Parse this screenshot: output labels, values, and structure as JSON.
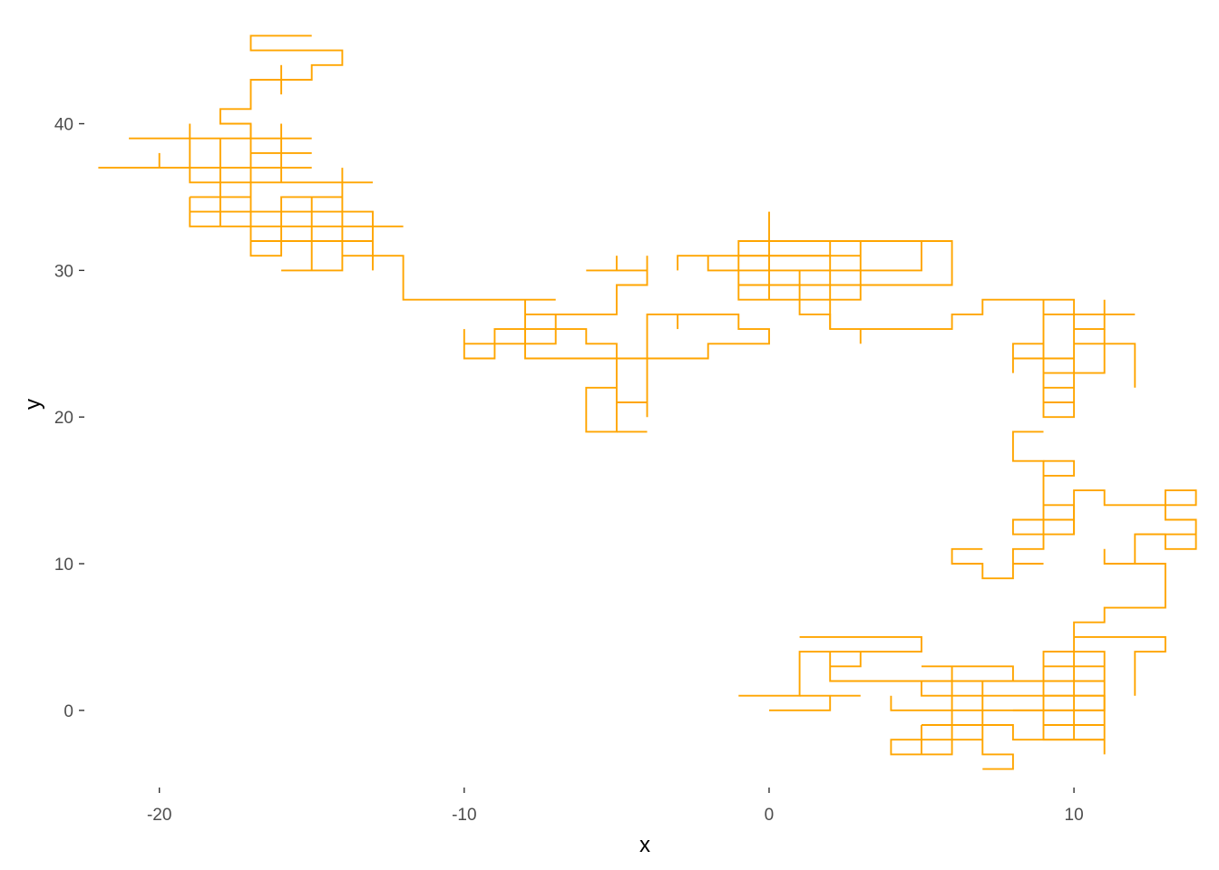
{
  "chart_data": {
    "type": "line",
    "title": "",
    "xlabel": "x",
    "ylabel": "y",
    "xlim": [
      -22.4,
      14.4
    ],
    "ylim": [
      -5.2,
      47.2
    ],
    "xticks": [
      -20,
      -10,
      0,
      10
    ],
    "yticks": [
      0,
      10,
      20,
      30,
      40
    ],
    "grid": false,
    "legend": "none",
    "series": [
      {
        "color": "#FFA500",
        "segments": [
          [
            [
              -15,
              46
            ],
            [
              -17,
              46
            ],
            [
              -17,
              45
            ],
            [
              -14,
              45
            ],
            [
              -14,
              44
            ],
            [
              -15,
              44
            ],
            [
              -15,
              43
            ],
            [
              -17,
              43
            ],
            [
              -17,
              42
            ],
            [
              -17,
              41
            ],
            [
              -18,
              41
            ],
            [
              -18,
              40
            ],
            [
              -17,
              40
            ],
            [
              -17,
              39
            ],
            [
              -19,
              39
            ],
            [
              -21,
              39
            ]
          ],
          [
            [
              -16,
              44
            ],
            [
              -16,
              42
            ]
          ],
          [
            [
              -22,
              37
            ],
            [
              -15,
              37
            ]
          ],
          [
            [
              -20,
              38
            ],
            [
              -20,
              37
            ]
          ],
          [
            [
              -19,
              40
            ],
            [
              -19,
              36
            ],
            [
              -13,
              36
            ]
          ],
          [
            [
              -18,
              39
            ],
            [
              -18,
              33
            ]
          ],
          [
            [
              -17,
              40
            ],
            [
              -17,
              31
            ],
            [
              -16,
              31
            ],
            [
              -16,
              35
            ],
            [
              -14,
              35
            ]
          ],
          [
            [
              -17,
              38
            ],
            [
              -15,
              38
            ]
          ],
          [
            [
              -17,
              39
            ],
            [
              -15,
              39
            ]
          ],
          [
            [
              -16,
              40
            ],
            [
              -16,
              36
            ]
          ],
          [
            [
              -14,
              37
            ],
            [
              -14,
              30
            ],
            [
              -16,
              30
            ]
          ],
          [
            [
              -19,
              35
            ],
            [
              -17,
              35
            ]
          ],
          [
            [
              -19,
              35
            ],
            [
              -19,
              33
            ],
            [
              -12,
              33
            ]
          ],
          [
            [
              -19,
              34
            ],
            [
              -13,
              34
            ],
            [
              -13,
              30
            ]
          ],
          [
            [
              -17,
              32
            ],
            [
              -13,
              32
            ]
          ],
          [
            [
              -15,
              35
            ],
            [
              -15,
              30
            ]
          ],
          [
            [
              -14,
              31
            ],
            [
              -12,
              31
            ],
            [
              -12,
              28
            ],
            [
              -7,
              28
            ]
          ],
          [
            [
              -8,
              28
            ],
            [
              -8,
              24
            ],
            [
              -2,
              24
            ],
            [
              -2,
              25
            ],
            [
              0,
              25
            ],
            [
              0,
              26
            ],
            [
              -1,
              26
            ],
            [
              -1,
              27
            ],
            [
              -4,
              27
            ],
            [
              -4,
              20
            ]
          ],
          [
            [
              -8,
              27
            ],
            [
              -5,
              27
            ],
            [
              -5,
              29
            ],
            [
              -4,
              29
            ],
            [
              -4,
              30
            ],
            [
              -6,
              30
            ]
          ],
          [
            [
              -10,
              26
            ],
            [
              -10,
              24
            ],
            [
              -9,
              24
            ],
            [
              -9,
              26
            ],
            [
              -6,
              26
            ],
            [
              -6,
              25
            ],
            [
              -5,
              25
            ],
            [
              -5,
              19
            ],
            [
              -6,
              19
            ],
            [
              -6,
              22
            ],
            [
              -5,
              22
            ]
          ],
          [
            [
              -10,
              25
            ],
            [
              -7,
              25
            ],
            [
              -7,
              27
            ]
          ],
          [
            [
              -8,
              26
            ],
            [
              -8,
              25
            ]
          ],
          [
            [
              -5,
              21
            ],
            [
              -4,
              21
            ]
          ],
          [
            [
              -5,
              19
            ],
            [
              -4,
              19
            ]
          ],
          [
            [
              -3,
              27
            ],
            [
              -3,
              26
            ]
          ],
          [
            [
              -5,
              31
            ],
            [
              -5,
              30
            ]
          ],
          [
            [
              -4,
              31
            ],
            [
              -4,
              30
            ]
          ],
          [
            [
              -3,
              30
            ],
            [
              -3,
              31
            ],
            [
              3,
              31
            ]
          ],
          [
            [
              -2,
              31
            ],
            [
              -2,
              30
            ],
            [
              5,
              30
            ],
            [
              5,
              32
            ],
            [
              -1,
              32
            ],
            [
              -1,
              28
            ],
            [
              1,
              28
            ],
            [
              1,
              27
            ],
            [
              2,
              27
            ],
            [
              2,
              26
            ],
            [
              6,
              26
            ],
            [
              6,
              27
            ],
            [
              7,
              27
            ],
            [
              7,
              28
            ],
            [
              10,
              28
            ],
            [
              10,
              20
            ],
            [
              9,
              20
            ],
            [
              9,
              28
            ]
          ],
          [
            [
              0,
              34
            ],
            [
              0,
              28
            ]
          ],
          [
            [
              -1,
              31
            ],
            [
              2,
              31
            ]
          ],
          [
            [
              -1,
              29
            ],
            [
              6,
              29
            ],
            [
              6,
              32
            ],
            [
              3,
              32
            ],
            [
              3,
              28
            ],
            [
              1,
              28
            ]
          ],
          [
            [
              1,
              30
            ],
            [
              1,
              28
            ]
          ],
          [
            [
              2,
              32
            ],
            [
              2,
              26
            ]
          ],
          [
            [
              1,
              29
            ],
            [
              3,
              29
            ]
          ],
          [
            [
              3,
              26
            ],
            [
              3,
              25
            ]
          ],
          [
            [
              9,
              27
            ],
            [
              12,
              27
            ]
          ],
          [
            [
              10,
              26
            ],
            [
              11,
              26
            ],
            [
              11,
              28
            ]
          ],
          [
            [
              9,
              25
            ],
            [
              8,
              25
            ],
            [
              8,
              23
            ]
          ],
          [
            [
              8,
              24
            ],
            [
              10,
              24
            ]
          ],
          [
            [
              9,
              23
            ],
            [
              10,
              23
            ]
          ],
          [
            [
              10,
              25
            ],
            [
              12,
              25
            ],
            [
              12,
              22
            ]
          ],
          [
            [
              10,
              23
            ],
            [
              11,
              23
            ],
            [
              11,
              26
            ]
          ],
          [
            [
              9,
              22
            ],
            [
              10,
              22
            ]
          ],
          [
            [
              9,
              21
            ],
            [
              10,
              21
            ]
          ],
          [
            [
              9,
              19
            ],
            [
              8,
              19
            ],
            [
              8,
              17
            ],
            [
              9,
              17
            ],
            [
              9,
              11
            ],
            [
              8,
              11
            ],
            [
              8,
              9
            ],
            [
              7,
              9
            ],
            [
              7,
              10
            ],
            [
              6,
              10
            ],
            [
              6,
              11
            ],
            [
              7,
              11
            ]
          ],
          [
            [
              9,
              17
            ],
            [
              10,
              17
            ],
            [
              10,
              16
            ],
            [
              9,
              16
            ]
          ],
          [
            [
              9,
              14
            ],
            [
              10,
              14
            ],
            [
              10,
              12
            ],
            [
              8,
              12
            ],
            [
              8,
              13
            ],
            [
              10,
              13
            ]
          ],
          [
            [
              10,
              12
            ],
            [
              10,
              15
            ],
            [
              11,
              15
            ],
            [
              11,
              14
            ],
            [
              14,
              14
            ],
            [
              14,
              15
            ],
            [
              13,
              15
            ],
            [
              13,
              14
            ]
          ],
          [
            [
              13,
              14
            ],
            [
              13,
              13
            ],
            [
              14,
              13
            ],
            [
              14,
              11
            ],
            [
              13,
              11
            ],
            [
              13,
              12
            ],
            [
              12,
              12
            ],
            [
              12,
              10
            ]
          ],
          [
            [
              12,
              12
            ],
            [
              14,
              12
            ]
          ],
          [
            [
              11,
              11
            ],
            [
              11,
              10
            ],
            [
              13,
              10
            ],
            [
              13,
              7
            ],
            [
              11,
              7
            ],
            [
              11,
              6
            ],
            [
              10,
              6
            ],
            [
              10,
              4
            ],
            [
              9,
              4
            ]
          ],
          [
            [
              8,
              10
            ],
            [
              9,
              10
            ]
          ],
          [
            [
              1,
              5
            ],
            [
              5,
              5
            ],
            [
              5,
              4
            ],
            [
              1,
              4
            ],
            [
              1,
              1
            ],
            [
              -1,
              1
            ]
          ],
          [
            [
              2,
              4
            ],
            [
              2,
              2
            ],
            [
              11,
              2
            ]
          ],
          [
            [
              3,
              4
            ],
            [
              3,
              3
            ],
            [
              2,
              3
            ]
          ],
          [
            [
              3,
              1
            ],
            [
              1,
              1
            ]
          ],
          [
            [
              0,
              0
            ],
            [
              2,
              0
            ],
            [
              2,
              1
            ]
          ],
          [
            [
              5,
              3
            ],
            [
              8,
              3
            ],
            [
              8,
              2
            ],
            [
              7,
              2
            ],
            [
              7,
              -3
            ],
            [
              8,
              -3
            ],
            [
              8,
              -4
            ],
            [
              7,
              -4
            ]
          ],
          [
            [
              5,
              2
            ],
            [
              5,
              1
            ],
            [
              11,
              1
            ],
            [
              11,
              -3
            ]
          ],
          [
            [
              4,
              1
            ],
            [
              4,
              0
            ],
            [
              11,
              0
            ],
            [
              11,
              4
            ],
            [
              9,
              4
            ],
            [
              9,
              -2
            ],
            [
              11,
              -2
            ]
          ],
          [
            [
              6,
              3
            ],
            [
              6,
              -3
            ],
            [
              5,
              -3
            ],
            [
              4,
              -3
            ],
            [
              4,
              -2
            ],
            [
              7,
              -2
            ]
          ],
          [
            [
              5,
              -1
            ],
            [
              8,
              -1
            ],
            [
              8,
              -2
            ],
            [
              11,
              -2
            ]
          ],
          [
            [
              5,
              -3
            ],
            [
              5,
              -1
            ]
          ],
          [
            [
              10,
              5
            ],
            [
              13,
              5
            ],
            [
              13,
              4
            ],
            [
              12,
              4
            ],
            [
              12,
              1
            ]
          ],
          [
            [
              9,
              3
            ],
            [
              11,
              3
            ]
          ],
          [
            [
              10,
              4
            ],
            [
              10,
              -2
            ]
          ],
          [
            [
              9,
              1
            ],
            [
              11,
              1
            ]
          ],
          [
            [
              9,
              -1
            ],
            [
              11,
              -1
            ]
          ],
          [
            [
              8,
              0
            ],
            [
              11,
              0
            ]
          ]
        ]
      }
    ]
  }
}
